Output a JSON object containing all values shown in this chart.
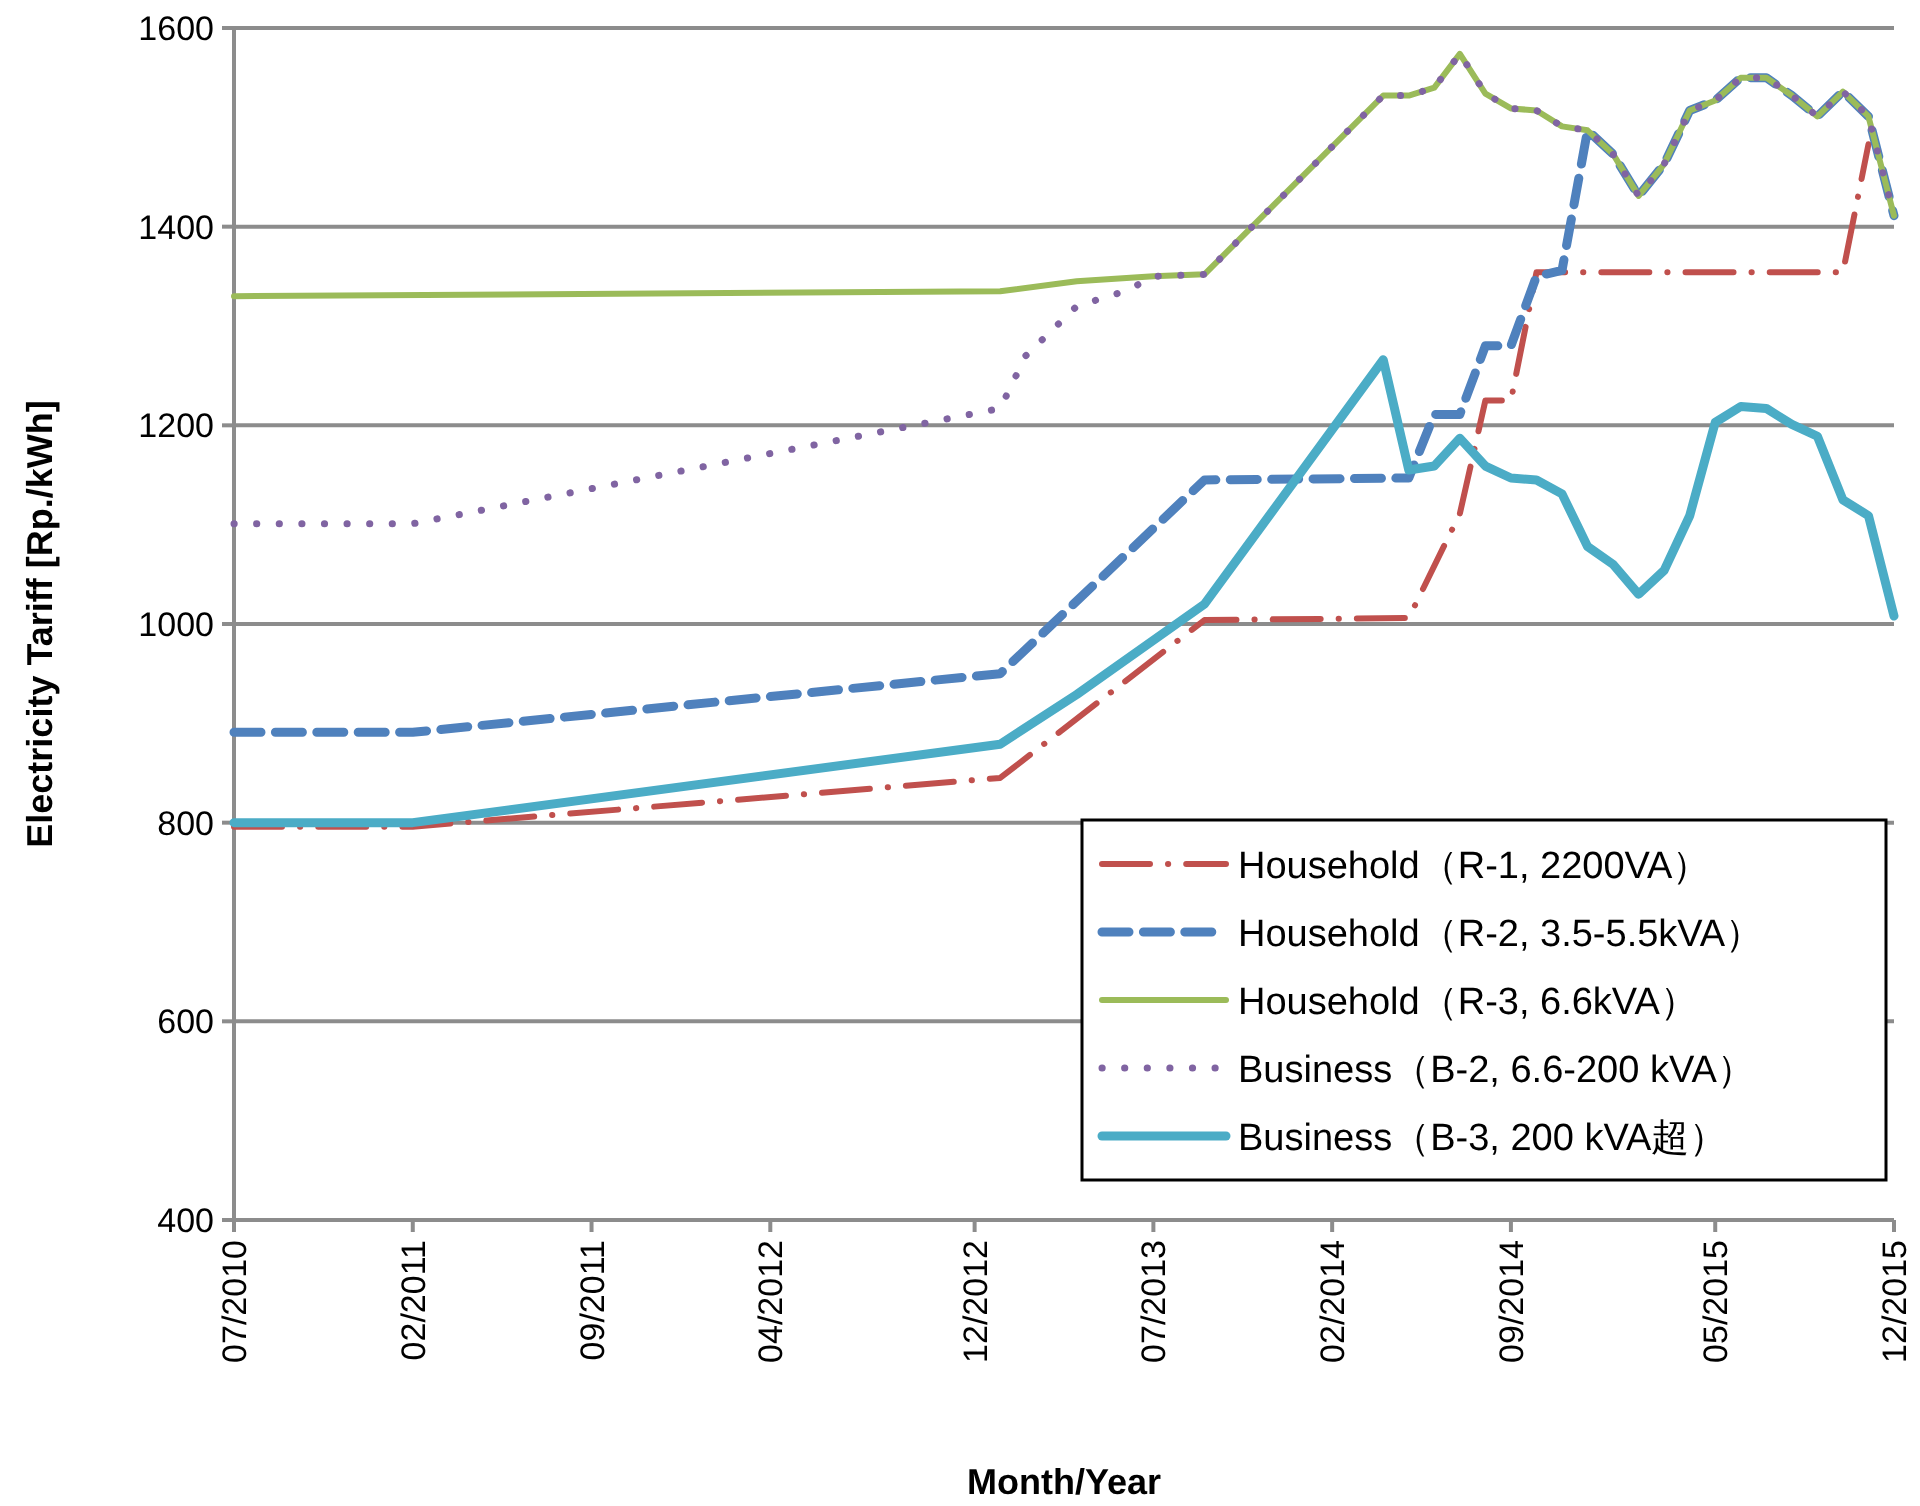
{
  "chart_data": {
    "type": "line",
    "xlabel": "Month/Year",
    "ylabel": "Electricity Tariff [Rp./kWh]",
    "xlim": [
      "2010-07",
      "2015-12"
    ],
    "xticks": [
      {
        "value": "2010-07",
        "label": "07/2010"
      },
      {
        "value": "2011-02",
        "label": "02/2011"
      },
      {
        "value": "2011-09",
        "label": "09/2011"
      },
      {
        "value": "2012-04",
        "label": "04/2012"
      },
      {
        "value": "2012-12",
        "label": "12/2012"
      },
      {
        "value": "2013-07",
        "label": "07/2013"
      },
      {
        "value": "2014-02",
        "label": "02/2014"
      },
      {
        "value": "2014-09",
        "label": "09/2014"
      },
      {
        "value": "2015-05",
        "label": "05/2015"
      },
      {
        "value": "2015-12",
        "label": "12/2015"
      }
    ],
    "ylim": [
      400,
      1600
    ],
    "yticks": [
      400,
      600,
      800,
      1000,
      1200,
      1400,
      1600
    ],
    "grid": "y",
    "legend": "bottom right",
    "series": [
      {
        "name": "Household（R-1, 2200VA）",
        "color": "#c0504d",
        "line_style": "dashdot",
        "x": [
          "2010-07",
          "2011-02",
          "2013-01",
          "2013-09",
          "2014-05",
          "2014-07",
          "2014-08",
          "2014-09",
          "2014-10",
          "2015-10",
          "2015-11"
        ],
        "values": [
          796,
          796,
          845,
          1004,
          1006,
          1111,
          1225,
          1225,
          1354,
          1354,
          1483
        ]
      },
      {
        "name": "Household（R-2, 3.5-5.5kVA）",
        "color": "#4f81bd",
        "line_style": "dashed",
        "x": [
          "2010-07",
          "2011-02",
          "2013-01",
          "2013-09",
          "2014-05",
          "2014-06",
          "2014-07",
          "2014-08",
          "2014-09",
          "2014-10",
          "2014-11",
          "2014-12",
          "2015-01",
          "2015-02",
          "2015-03",
          "2015-04",
          "2015-05",
          "2015-06",
          "2015-07",
          "2015-08",
          "2015-09",
          "2015-10",
          "2015-11",
          "2015-12"
        ],
        "values": [
          891,
          891,
          950,
          1145,
          1147,
          1211,
          1211,
          1280,
          1280,
          1350,
          1356,
          1497,
          1473,
          1431,
          1463,
          1517,
          1527,
          1550,
          1550,
          1532,
          1511,
          1536,
          1511,
          1411
        ]
      },
      {
        "name": "Household（R-3, 6.6kVA）",
        "color": "#9bbb59",
        "line_style": "solid",
        "x": [
          "2010-07",
          "2013-01",
          "2013-04",
          "2013-07",
          "2013-09",
          "2014-04",
          "2014-05",
          "2014-06",
          "2014-07",
          "2014-08",
          "2014-09",
          "2014-10",
          "2014-11",
          "2014-12",
          "2015-01",
          "2015-02",
          "2015-03",
          "2015-04",
          "2015-05",
          "2015-06",
          "2015-07",
          "2015-08",
          "2015-09",
          "2015-10",
          "2015-11",
          "2015-12"
        ],
        "values": [
          1330,
          1335,
          1345,
          1350,
          1352,
          1532,
          1532,
          1540,
          1574,
          1534,
          1519,
          1517,
          1501,
          1497,
          1473,
          1431,
          1463,
          1517,
          1527,
          1550,
          1550,
          1532,
          1511,
          1536,
          1511,
          1411
        ]
      },
      {
        "name": "Business（B-2, 6.6-200 kVA）",
        "color": "#8064a2",
        "line_style": "dotted",
        "x": [
          "2010-07",
          "2011-02",
          "2013-01",
          "2013-02",
          "2013-04",
          "2013-06",
          "2013-07",
          "2013-09",
          "2014-04",
          "2014-05",
          "2014-06",
          "2014-07",
          "2014-08",
          "2014-09",
          "2014-10",
          "2014-11",
          "2014-12",
          "2015-01",
          "2015-02",
          "2015-03",
          "2015-04",
          "2015-05",
          "2015-06",
          "2015-07",
          "2015-08",
          "2015-09",
          "2015-10",
          "2015-11",
          "2015-12"
        ],
        "values": [
          1101,
          1101,
          1217,
          1270,
          1320,
          1336,
          1350,
          1352,
          1532,
          1532,
          1540,
          1574,
          1534,
          1519,
          1517,
          1501,
          1497,
          1473,
          1431,
          1463,
          1517,
          1527,
          1550,
          1550,
          1532,
          1511,
          1536,
          1511,
          1411
        ]
      },
      {
        "name": "Business（B-3, 200 kVA超）",
        "color": "#4bacc6",
        "line_style": "solid",
        "x": [
          "2010-07",
          "2011-02",
          "2013-01",
          "2013-04",
          "2013-09",
          "2014-04",
          "2014-05",
          "2014-06",
          "2014-07",
          "2014-08",
          "2014-09",
          "2014-10",
          "2014-11",
          "2014-12",
          "2015-01",
          "2015-02",
          "2015-03",
          "2015-04",
          "2015-05",
          "2015-06",
          "2015-07",
          "2015-08",
          "2015-09",
          "2015-10",
          "2015-11",
          "2015-12"
        ],
        "values": [
          800,
          800,
          879,
          929,
          1020,
          1266,
          1155,
          1159,
          1187,
          1159,
          1147,
          1145,
          1131,
          1078,
          1060,
          1030,
          1054,
          1109,
          1203,
          1219,
          1217,
          1201,
          1189,
          1125,
          1109,
          1008
        ]
      }
    ]
  }
}
